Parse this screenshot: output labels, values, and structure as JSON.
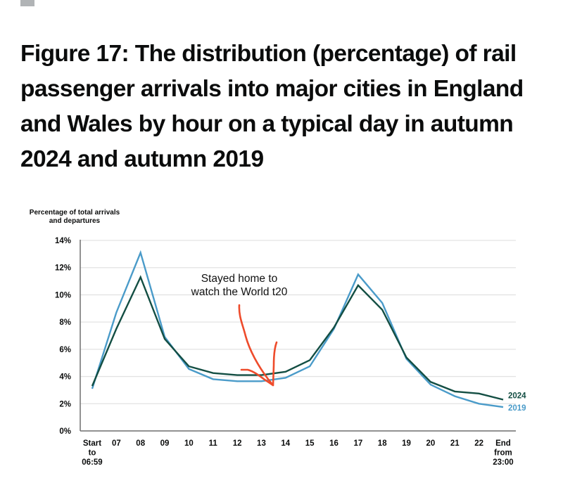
{
  "page": {
    "figure_title": "Figure 17: The distribution (percentage) of rail passenger arrivals into major cities in England and Wales by hour on a typical day in autumn 2024 and autumn 2019"
  },
  "chart_data": {
    "type": "line",
    "title": "Figure 17: The distribution (percentage) of rail passenger arrivals into major cities in England and Wales by hour on a typical day in autumn 2024 and autumn 2019",
    "ylabel": [
      "Percentage of total arrivals",
      "and departures"
    ],
    "xlabel": "",
    "ylim": [
      0,
      14
    ],
    "yticks": [
      0,
      2,
      4,
      6,
      8,
      10,
      12,
      14
    ],
    "ytick_labels": [
      "0%",
      "2%",
      "4%",
      "6%",
      "8%",
      "10%",
      "12%",
      "14%"
    ],
    "grid": true,
    "categories": [
      [
        "Start",
        "to",
        "06:59"
      ],
      [
        "07"
      ],
      [
        "08"
      ],
      [
        "09"
      ],
      [
        "10"
      ],
      [
        "11"
      ],
      [
        "12"
      ],
      [
        "13"
      ],
      [
        "14"
      ],
      [
        "15"
      ],
      [
        "16"
      ],
      [
        "17"
      ],
      [
        "18"
      ],
      [
        "19"
      ],
      [
        "20"
      ],
      [
        "21"
      ],
      [
        "22"
      ],
      [
        "End",
        "from",
        "23:00"
      ]
    ],
    "series": [
      {
        "name": "2019",
        "color": "#4a9bc9",
        "values": [
          3.1,
          8.7,
          13.1,
          6.9,
          4.55,
          3.8,
          3.65,
          3.65,
          3.9,
          4.75,
          7.5,
          11.5,
          9.4,
          5.3,
          3.4,
          2.55,
          2.0,
          1.75
        ]
      },
      {
        "name": "2024",
        "color": "#134e43",
        "values": [
          3.3,
          7.5,
          11.3,
          6.75,
          4.75,
          4.25,
          4.1,
          4.1,
          4.35,
          5.2,
          7.6,
          10.7,
          8.9,
          5.4,
          3.6,
          2.9,
          2.75,
          2.3
        ]
      }
    ],
    "legend": "inline-right",
    "annotation": {
      "text": [
        "Stayed home to",
        "watch the World t20"
      ],
      "arrow_color": "#ee4b2b",
      "points_to_category": "13"
    }
  }
}
